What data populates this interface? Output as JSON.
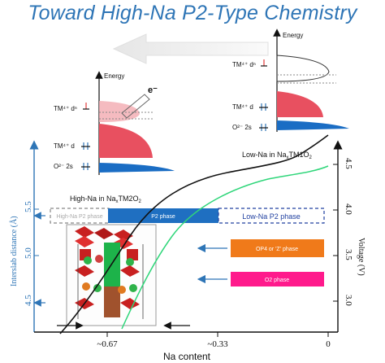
{
  "title": "Toward High-Na P2-Type Chemistry",
  "energy_diagram_left": {
    "axis_label": "Energy",
    "electron_label": "e⁻",
    "levels": [
      "TM⁴⁺ dⁿ",
      "TM⁴⁺ d",
      "O²⁻ 2s"
    ]
  },
  "energy_diagram_right": {
    "axis_label": "Energy",
    "levels": [
      "TM⁴⁺ dⁿ",
      "TM⁴⁺ d",
      "O²⁻ 2s"
    ]
  },
  "plot": {
    "x_axis_label": "Na content",
    "x_ticks": [
      "~0.67",
      "~0.33",
      "0"
    ],
    "left_axis_label": "Interslab distance (Å)",
    "left_ticks": [
      "4.5",
      "5.0",
      "5.5"
    ],
    "right_axis_label": "Voltage (V)",
    "right_ticks": [
      "3.0",
      "3.5",
      "4.0",
      "4.5"
    ],
    "label_low_na": "Low-Na in Na",
    "label_low_na_sub": "x",
    "label_low_na_tail": "TM1O",
    "label_low_na_tail_sub": "2",
    "label_high_na": "High-Na in Na",
    "label_high_na_sub": "x",
    "label_high_na_tail": "TM2O",
    "label_high_na_tail_sub": "2"
  },
  "phases": {
    "high_na_p2": "High-Na P2 phase",
    "p2_phase": "P2 phase",
    "low_na_p2": "Low-Na P2 phase",
    "op4": "OP4 or 'Z' phase",
    "o2": "O2 phase"
  },
  "colors": {
    "title": "#2e75b6",
    "axis_blue": "#2e75b6",
    "p2_bar": "#1f6fc1",
    "op4_bar": "#f07a1a",
    "o2_bar": "#ff1a8c",
    "curve_black": "#111111",
    "curve_green": "#2fd67a"
  }
}
